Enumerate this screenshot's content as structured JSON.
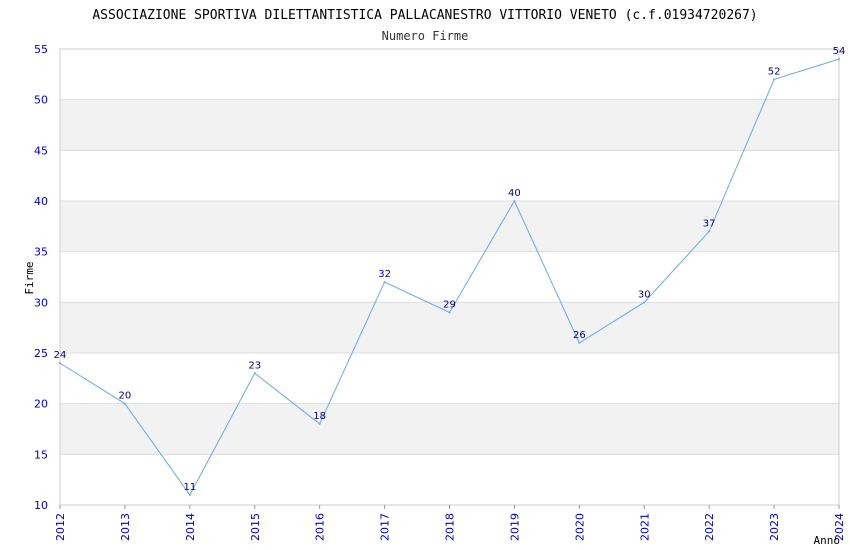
{
  "chart_data": {
    "type": "line",
    "title": "ASSOCIAZIONE SPORTIVA DILETTANTISTICA PALLACANESTRO VITTORIO VENETO (c.f.01934720267)",
    "subtitle": "Numero Firme",
    "xlabel": "Anno",
    "ylabel": "Firme",
    "categories": [
      "2012",
      "2013",
      "2014",
      "2015",
      "2016",
      "2017",
      "2018",
      "2019",
      "2020",
      "2021",
      "2022",
      "2023",
      "2024"
    ],
    "series": [
      {
        "name": "Numero Firme",
        "values": [
          24,
          20,
          11,
          23,
          18,
          32,
          29,
          40,
          26,
          30,
          37,
          52,
          54
        ]
      }
    ],
    "ylim": [
      10,
      55
    ],
    "yticks": [
      10,
      15,
      20,
      25,
      30,
      35,
      40,
      45,
      50,
      55
    ],
    "grid": true,
    "line_color": "#6aa8e8",
    "band_color": "#f2f2f2",
    "grid_color": "#dddddd",
    "tick_color": "#0000cc",
    "label_color": "#000080"
  }
}
